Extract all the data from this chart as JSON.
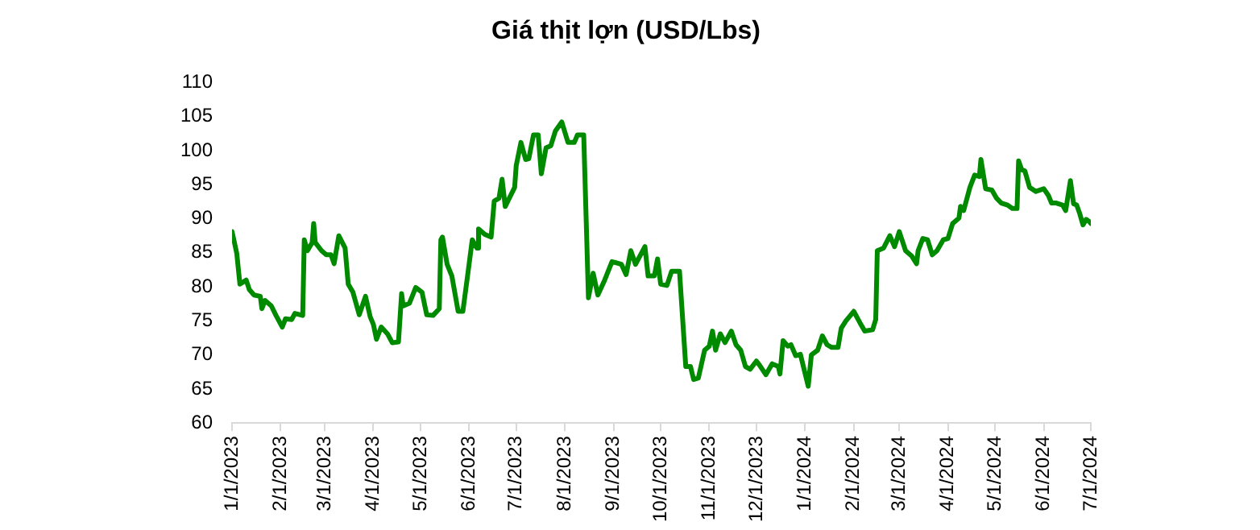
{
  "chart_data": {
    "type": "line",
    "title": "Giá thịt lợn (USD/Lbs)",
    "x": [
      "2023-01-01",
      "2023-01-04",
      "2023-01-06",
      "2023-01-10",
      "2023-01-12",
      "2023-01-15",
      "2023-01-19",
      "2023-01-20",
      "2023-01-22",
      "2023-01-26",
      "2023-01-29",
      "2023-02-02",
      "2023-02-04",
      "2023-02-08",
      "2023-02-10",
      "2023-02-15",
      "2023-02-16",
      "2023-02-18",
      "2023-02-21",
      "2023-02-22",
      "2023-02-23",
      "2023-02-27",
      "2023-03-02",
      "2023-03-05",
      "2023-03-07",
      "2023-03-10",
      "2023-03-14",
      "2023-03-16",
      "2023-03-19",
      "2023-03-23",
      "2023-03-27",
      "2023-03-30",
      "2023-04-01",
      "2023-04-03",
      "2023-04-06",
      "2023-04-10",
      "2023-04-13",
      "2023-04-17",
      "2023-04-19",
      "2023-04-20",
      "2023-04-24",
      "2023-04-28",
      "2023-05-02",
      "2023-05-05",
      "2023-05-09",
      "2023-05-13",
      "2023-05-14",
      "2023-05-15",
      "2023-05-18",
      "2023-05-21",
      "2023-05-25",
      "2023-05-28",
      "2023-05-31",
      "2023-06-03",
      "2023-06-06",
      "2023-06-07",
      "2023-06-11",
      "2023-06-15",
      "2023-06-17",
      "2023-06-20",
      "2023-06-22",
      "2023-06-24",
      "2023-06-30",
      "2023-07-01",
      "2023-07-04",
      "2023-07-07",
      "2023-07-09",
      "2023-07-12",
      "2023-07-15",
      "2023-07-17",
      "2023-07-20",
      "2023-07-23",
      "2023-07-26",
      "2023-07-30",
      "2023-08-03",
      "2023-08-07",
      "2023-08-09",
      "2023-08-13",
      "2023-08-16",
      "2023-08-19",
      "2023-08-22",
      "2023-08-26",
      "2023-08-31",
      "2023-09-06",
      "2023-09-09",
      "2023-09-12",
      "2023-09-15",
      "2023-09-21",
      "2023-09-23",
      "2023-09-27",
      "2023-09-29",
      "2023-10-01",
      "2023-10-05",
      "2023-10-08",
      "2023-10-13",
      "2023-10-17",
      "2023-10-20",
      "2023-10-22",
      "2023-10-25",
      "2023-10-29",
      "2023-11-01",
      "2023-11-03",
      "2023-11-05",
      "2023-11-08",
      "2023-11-11",
      "2023-11-15",
      "2023-11-18",
      "2023-11-21",
      "2023-11-24",
      "2023-11-27",
      "2023-12-01",
      "2023-12-03",
      "2023-12-07",
      "2023-12-11",
      "2023-12-15",
      "2023-12-16",
      "2023-12-18",
      "2023-12-21",
      "2023-12-23",
      "2023-12-26",
      "2023-12-29",
      "2024-01-03",
      "2024-01-05",
      "2024-01-09",
      "2024-01-12",
      "2024-01-15",
      "2024-01-18",
      "2024-01-22",
      "2024-01-24",
      "2024-01-27",
      "2024-02-01",
      "2024-02-05",
      "2024-02-08",
      "2024-02-13",
      "2024-02-15",
      "2024-02-16",
      "2024-02-20",
      "2024-02-24",
      "2024-02-27",
      "2024-03-01",
      "2024-03-05",
      "2024-03-09",
      "2024-03-12",
      "2024-03-13",
      "2024-03-16",
      "2024-03-19",
      "2024-03-22",
      "2024-03-25",
      "2024-03-29",
      "2024-04-01",
      "2024-04-04",
      "2024-04-08",
      "2024-04-09",
      "2024-04-11",
      "2024-04-15",
      "2024-04-18",
      "2024-04-21",
      "2024-04-22",
      "2024-04-25",
      "2024-04-29",
      "2024-05-02",
      "2024-05-05",
      "2024-05-09",
      "2024-05-12",
      "2024-05-15",
      "2024-05-16",
      "2024-05-18",
      "2024-05-20",
      "2024-05-23",
      "2024-05-27",
      "2024-06-01",
      "2024-06-04",
      "2024-06-06",
      "2024-06-09",
      "2024-06-13",
      "2024-06-15",
      "2024-06-18",
      "2024-06-20",
      "2024-06-22",
      "2024-06-24",
      "2024-06-26",
      "2024-06-28",
      "2024-06-30",
      "2024-07-01"
    ],
    "series": [
      {
        "color": "#008a00",
        "values": [
          88.1,
          84.9,
          80.4,
          81,
          79.6,
          78.8,
          78.6,
          76.8,
          78,
          77.2,
          75.8,
          74.1,
          75.3,
          75.2,
          76.1,
          75.8,
          86.9,
          85.3,
          86.5,
          89.3,
          86.5,
          85.3,
          84.7,
          84.7,
          83.4,
          87.5,
          85.7,
          80.4,
          79.2,
          75.9,
          78.6,
          75.6,
          74.5,
          72.3,
          74.1,
          73.1,
          71.8,
          71.9,
          79,
          77.2,
          77.6,
          79.9,
          79.2,
          75.9,
          75.8,
          76.8,
          86.9,
          87.3,
          83.3,
          81.6,
          76.4,
          76.4,
          81.6,
          86.9,
          85.7,
          88.5,
          87.7,
          87.3,
          92.6,
          93,
          95.8,
          91.8,
          94.6,
          97.8,
          101.2,
          98.7,
          98.8,
          102.3,
          102.3,
          96.6,
          100.4,
          100.7,
          102.9,
          104.2,
          101.2,
          101.2,
          102.3,
          102.3,
          78.4,
          82,
          78.8,
          80.8,
          83.7,
          83.3,
          81.8,
          85.3,
          83.3,
          85.9,
          81.6,
          81.6,
          84.1,
          80.4,
          80.2,
          82.3,
          82.3,
          68.3,
          68.3,
          66.4,
          66.6,
          70.7,
          71.3,
          73.5,
          70.7,
          73.1,
          71.8,
          73.5,
          71.5,
          70.7,
          68.3,
          67.9,
          69.1,
          68.5,
          67.1,
          68.7,
          68.3,
          67.2,
          72.1,
          71.3,
          71.5,
          69.9,
          70.1,
          65.4,
          70,
          70.7,
          72.8,
          71.5,
          71.1,
          71.1,
          73.9,
          75,
          76.4,
          74.7,
          73.5,
          73.7,
          75.2,
          85.3,
          85.7,
          87.5,
          85.9,
          88.1,
          85.3,
          84.5,
          83.4,
          85.3,
          87.1,
          86.9,
          84.7,
          85.3,
          86.9,
          87.1,
          89.3,
          90.1,
          91.8,
          91.2,
          94.6,
          96.4,
          96.2,
          98.7,
          94.4,
          94.2,
          93,
          92.3,
          92,
          91.5,
          91.5,
          98.5,
          97.2,
          97,
          94.6,
          94,
          94.4,
          93.4,
          92.3,
          92.3,
          92,
          91.2,
          95.6,
          92.2,
          92,
          90.7,
          89.1,
          89.9,
          89.6,
          89.3
        ]
      }
    ],
    "xlim": [
      "2023-01-01",
      "2024-07-01"
    ],
    "xticks": [
      {
        "value": "2023-01-01",
        "label": "1/1/2023"
      },
      {
        "value": "2023-02-01",
        "label": "2/1/2023"
      },
      {
        "value": "2023-03-01",
        "label": "3/1/2023"
      },
      {
        "value": "2023-04-01",
        "label": "4/1/2023"
      },
      {
        "value": "2023-05-01",
        "label": "5/1/2023"
      },
      {
        "value": "2023-06-01",
        "label": "6/1/2023"
      },
      {
        "value": "2023-07-01",
        "label": "7/1/2023"
      },
      {
        "value": "2023-08-01",
        "label": "8/1/2023"
      },
      {
        "value": "2023-09-01",
        "label": "9/1/2023"
      },
      {
        "value": "2023-10-01",
        "label": "10/1/2023"
      },
      {
        "value": "2023-11-01",
        "label": "11/1/2023"
      },
      {
        "value": "2023-12-01",
        "label": "12/1/2023"
      },
      {
        "value": "2024-01-01",
        "label": "1/1/2024"
      },
      {
        "value": "2024-02-01",
        "label": "2/1/2024"
      },
      {
        "value": "2024-03-01",
        "label": "3/1/2024"
      },
      {
        "value": "2024-04-01",
        "label": "4/1/2024"
      },
      {
        "value": "2024-05-01",
        "label": "5/1/2024"
      },
      {
        "value": "2024-06-01",
        "label": "6/1/2024"
      },
      {
        "value": "2024-07-01",
        "label": "7/1/2024"
      }
    ],
    "ylim": [
      60,
      110
    ],
    "yticks": [
      60,
      65,
      70,
      75,
      80,
      85,
      90,
      95,
      100,
      105,
      110
    ],
    "grid": false,
    "legend": false,
    "marker": "none",
    "line_style": "solid"
  }
}
